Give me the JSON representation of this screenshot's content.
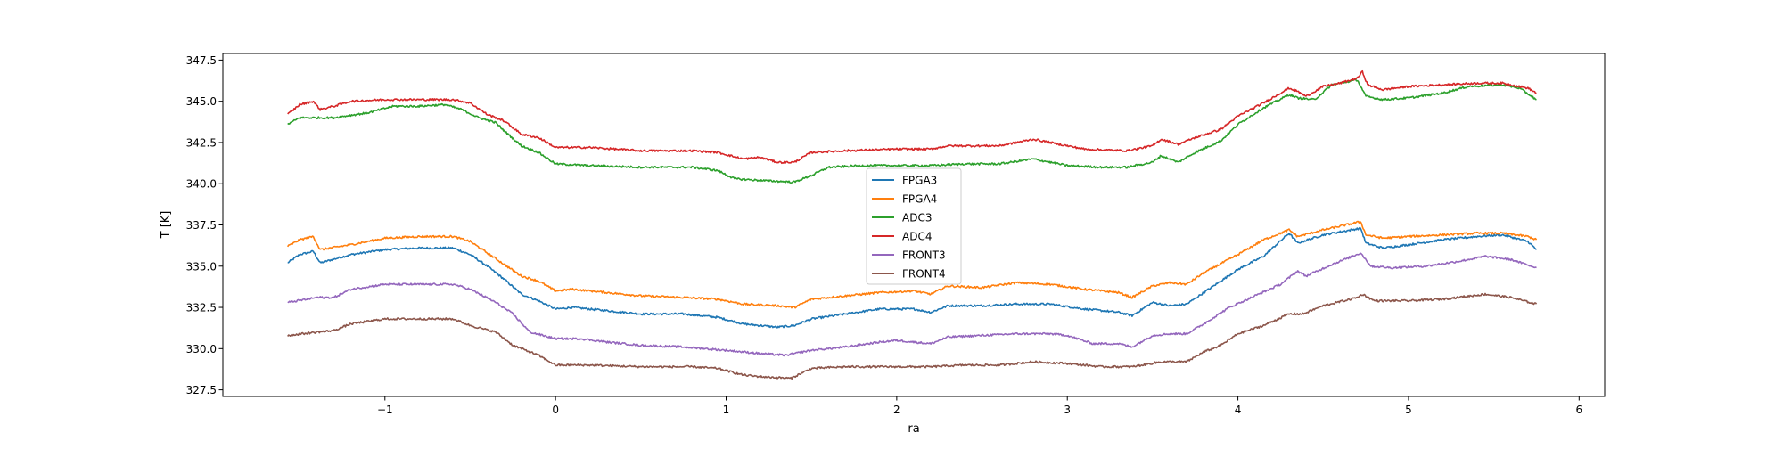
{
  "chart_data": {
    "type": "line",
    "title": "",
    "xlabel": "ra",
    "ylabel": "T [K]",
    "xlim": [
      -1.95,
      6.15
    ],
    "ylim": [
      327.1,
      347.9
    ],
    "xticks": [
      -1,
      0,
      1,
      2,
      3,
      4,
      5,
      6
    ],
    "xtick_labels": [
      "−1",
      "0",
      "1",
      "2",
      "3",
      "4",
      "5",
      "6"
    ],
    "yticks": [
      327.5,
      330.0,
      332.5,
      335.0,
      337.5,
      340.0,
      342.5,
      345.0,
      347.5
    ],
    "ytick_labels": [
      "327.5",
      "330.0",
      "332.5",
      "335.0",
      "337.5",
      "340.0",
      "342.5",
      "345.0",
      "347.5"
    ],
    "grid": false,
    "legend_position": "center",
    "series": [
      {
        "name": "FPGA3",
        "color": "#1f77b4",
        "x": [
          -1.57,
          -1.5,
          -1.42,
          -1.38,
          -1.2,
          -1,
          -0.8,
          -0.6,
          -0.5,
          -0.4,
          -0.3,
          -0.2,
          -0.1,
          0,
          0.1,
          0.3,
          0.5,
          0.75,
          0.95,
          1.1,
          1.3,
          1.4,
          1.5,
          1.7,
          1.9,
          2.1,
          2.2,
          2.3,
          2.5,
          2.7,
          2.9,
          3.1,
          3.3,
          3.38,
          3.5,
          3.6,
          3.7,
          3.8,
          4.0,
          4.15,
          4.3,
          4.35,
          4.5,
          4.72,
          4.75,
          4.85,
          5.0,
          5.2,
          5.4,
          5.55,
          5.7,
          5.75
        ],
        "y": [
          335.2,
          335.7,
          335.9,
          335.2,
          335.7,
          336.0,
          336.1,
          336.1,
          335.7,
          335.0,
          334.2,
          333.3,
          332.9,
          332.4,
          332.5,
          332.3,
          332.1,
          332.1,
          331.9,
          331.5,
          331.3,
          331.4,
          331.8,
          332.1,
          332.4,
          332.4,
          332.2,
          332.6,
          332.6,
          332.7,
          332.7,
          332.4,
          332.2,
          332.0,
          332.8,
          332.6,
          332.7,
          333.4,
          334.8,
          335.6,
          337.0,
          336.4,
          336.9,
          337.3,
          336.4,
          336.1,
          336.3,
          336.6,
          336.8,
          336.9,
          336.5,
          336.0
        ]
      },
      {
        "name": "FPGA4",
        "color": "#ff7f0e",
        "x": [
          -1.57,
          -1.5,
          -1.42,
          -1.38,
          -1.2,
          -1,
          -0.8,
          -0.6,
          -0.5,
          -0.4,
          -0.3,
          -0.2,
          -0.1,
          0,
          0.1,
          0.3,
          0.5,
          0.75,
          0.95,
          1.1,
          1.3,
          1.4,
          1.5,
          1.7,
          1.9,
          2.1,
          2.2,
          2.3,
          2.5,
          2.7,
          2.9,
          3.1,
          3.3,
          3.38,
          3.5,
          3.6,
          3.7,
          3.8,
          4.0,
          4.15,
          4.3,
          4.35,
          4.5,
          4.72,
          4.75,
          4.85,
          5.0,
          5.2,
          5.4,
          5.55,
          5.7,
          5.75
        ],
        "y": [
          336.2,
          336.6,
          336.8,
          336.0,
          336.3,
          336.7,
          336.8,
          336.8,
          336.5,
          335.8,
          335.1,
          334.4,
          334.1,
          333.5,
          333.6,
          333.4,
          333.2,
          333.1,
          333.0,
          332.7,
          332.6,
          332.5,
          333.0,
          333.2,
          333.4,
          333.5,
          333.3,
          333.8,
          333.7,
          334.0,
          333.9,
          333.6,
          333.4,
          333.1,
          333.8,
          334.0,
          333.9,
          334.6,
          335.7,
          336.6,
          337.2,
          336.8,
          337.2,
          337.7,
          336.9,
          336.7,
          336.8,
          336.9,
          337.0,
          337.0,
          336.8,
          336.6
        ]
      },
      {
        "name": "ADC3",
        "color": "#2ca02c",
        "x": [
          -1.57,
          -1.5,
          -1.4,
          -1.3,
          -1.1,
          -0.95,
          -0.8,
          -0.65,
          -0.55,
          -0.45,
          -0.35,
          -0.3,
          -0.2,
          -0.1,
          0,
          0.2,
          0.5,
          0.8,
          0.95,
          1.05,
          1.2,
          1.4,
          1.5,
          1.6,
          1.8,
          2.0,
          2.2,
          2.4,
          2.6,
          2.8,
          3.0,
          3.2,
          3.35,
          3.5,
          3.55,
          3.65,
          3.75,
          3.9,
          4.0,
          4.15,
          4.3,
          4.35,
          4.45,
          4.55,
          4.7,
          4.75,
          4.85,
          5.0,
          5.2,
          5.35,
          5.55,
          5.65,
          5.75
        ],
        "y": [
          343.6,
          344.0,
          344.0,
          344.0,
          344.3,
          344.7,
          344.7,
          344.8,
          344.5,
          344.0,
          343.7,
          343.2,
          342.3,
          341.9,
          341.2,
          341.1,
          341.0,
          341.0,
          340.8,
          340.3,
          340.2,
          340.1,
          340.5,
          341.0,
          341.1,
          341.1,
          341.1,
          341.2,
          341.2,
          341.5,
          341.1,
          341.0,
          341.0,
          341.3,
          341.7,
          341.3,
          341.9,
          342.6,
          343.6,
          344.6,
          345.4,
          345.2,
          345.1,
          346.0,
          346.3,
          345.3,
          345.1,
          345.2,
          345.5,
          345.9,
          346.0,
          345.8,
          345.1
        ]
      },
      {
        "name": "ADC4",
        "color": "#d62728",
        "x": [
          -1.57,
          -1.5,
          -1.42,
          -1.38,
          -1.3,
          -1.2,
          -1,
          -0.8,
          -0.6,
          -0.5,
          -0.4,
          -0.3,
          -0.2,
          -0.1,
          0,
          0.2,
          0.5,
          0.8,
          0.95,
          1.1,
          1.2,
          1.3,
          1.4,
          1.5,
          1.7,
          2.0,
          2.2,
          2.3,
          2.6,
          2.8,
          3.0,
          3.1,
          3.35,
          3.5,
          3.55,
          3.65,
          3.75,
          3.9,
          4.0,
          4.15,
          4.3,
          4.35,
          4.4,
          4.5,
          4.6,
          4.7,
          4.73,
          4.76,
          4.85,
          5.0,
          5.2,
          5.4,
          5.55,
          5.7,
          5.75
        ],
        "y": [
          344.2,
          344.8,
          345.0,
          344.5,
          344.7,
          345.0,
          345.1,
          345.1,
          345.1,
          344.9,
          344.2,
          343.8,
          343.0,
          342.8,
          342.2,
          342.2,
          342.0,
          342.0,
          341.9,
          341.5,
          341.6,
          341.3,
          341.3,
          341.9,
          342.0,
          342.1,
          342.1,
          342.3,
          342.3,
          342.7,
          342.3,
          342.1,
          342.0,
          342.3,
          342.7,
          342.4,
          342.8,
          343.3,
          344.1,
          344.9,
          345.8,
          345.6,
          345.3,
          345.9,
          346.1,
          346.4,
          346.8,
          346.0,
          345.7,
          345.9,
          346.0,
          346.1,
          346.1,
          345.8,
          345.5
        ]
      },
      {
        "name": "FRONT3",
        "color": "#9467bd",
        "x": [
          -1.57,
          -1.4,
          -1.3,
          -1.2,
          -1.0,
          -0.8,
          -0.6,
          -0.5,
          -0.35,
          -0.25,
          -0.15,
          0,
          0.15,
          0.3,
          0.5,
          0.75,
          1.0,
          1.2,
          1.35,
          1.5,
          1.7,
          1.9,
          2.0,
          2.2,
          2.3,
          2.5,
          2.7,
          2.9,
          3.0,
          3.15,
          3.3,
          3.38,
          3.5,
          3.6,
          3.7,
          3.8,
          3.95,
          4.1,
          4.25,
          4.35,
          4.4,
          4.55,
          4.72,
          4.78,
          4.9,
          5.1,
          5.3,
          5.45,
          5.6,
          5.75
        ],
        "y": [
          332.8,
          333.1,
          333.1,
          333.6,
          333.9,
          333.9,
          333.9,
          333.6,
          332.8,
          332.1,
          331.0,
          330.6,
          330.6,
          330.4,
          330.2,
          330.1,
          329.9,
          329.7,
          329.6,
          329.9,
          330.1,
          330.4,
          330.5,
          330.3,
          330.7,
          330.8,
          330.9,
          330.9,
          330.8,
          330.3,
          330.3,
          330.1,
          330.8,
          330.9,
          330.9,
          331.5,
          332.5,
          333.2,
          333.9,
          334.7,
          334.4,
          335.1,
          335.8,
          335.0,
          334.9,
          335.0,
          335.3,
          335.6,
          335.4,
          334.9
        ]
      },
      {
        "name": "FRONT4",
        "color": "#8c564b",
        "x": [
          -1.57,
          -1.4,
          -1.3,
          -1.2,
          -1.0,
          -0.8,
          -0.6,
          -0.5,
          -0.35,
          -0.25,
          -0.1,
          0,
          0.2,
          0.5,
          0.8,
          0.95,
          1.1,
          1.2,
          1.38,
          1.5,
          1.7,
          2.0,
          2.2,
          2.4,
          2.6,
          2.8,
          3.0,
          3.2,
          3.38,
          3.55,
          3.7,
          3.8,
          3.9,
          4.0,
          4.15,
          4.3,
          4.38,
          4.5,
          4.7,
          4.73,
          4.8,
          5.0,
          5.2,
          5.45,
          5.6,
          5.75
        ],
        "y": [
          330.8,
          331.0,
          331.1,
          331.5,
          331.8,
          331.8,
          331.8,
          331.4,
          331.0,
          330.2,
          329.6,
          329.0,
          329.0,
          328.9,
          328.9,
          328.8,
          328.4,
          328.3,
          328.2,
          328.8,
          328.9,
          328.9,
          328.9,
          329.0,
          329.0,
          329.2,
          329.1,
          328.9,
          328.9,
          329.2,
          329.2,
          329.8,
          330.2,
          330.9,
          331.4,
          332.1,
          332.1,
          332.6,
          333.1,
          333.3,
          332.9,
          332.9,
          333.0,
          333.3,
          333.1,
          332.7
        ]
      }
    ]
  }
}
